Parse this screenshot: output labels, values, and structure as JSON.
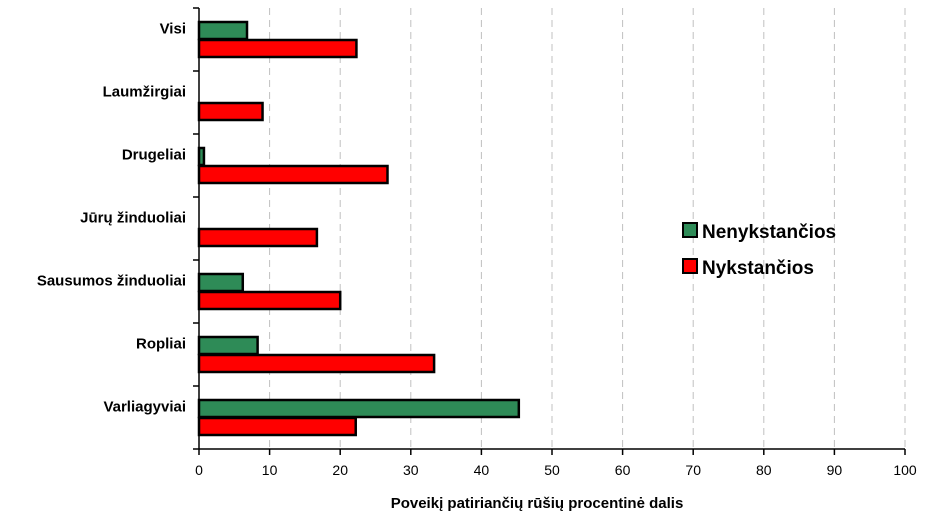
{
  "chart_data": {
    "type": "bar",
    "orientation": "horizontal",
    "categories": [
      "Visi",
      "Laumžirgiai",
      "Drugeliai",
      "Jūrų žinduoliai",
      "Sausumos žinduoliai",
      "Ropliai",
      "Varliagyviai"
    ],
    "series": [
      {
        "name": "Nenykstančios",
        "color": "#2e8b57",
        "values": [
          6.8,
          0,
          0.7,
          0,
          6.2,
          8.3,
          45.3
        ]
      },
      {
        "name": "Nykstančios",
        "color": "#ff0000",
        "values": [
          22.3,
          9.0,
          26.7,
          16.7,
          20.0,
          33.3,
          22.2
        ]
      }
    ],
    "xlim": [
      0,
      100
    ],
    "xticks": [
      0,
      10,
      20,
      30,
      40,
      50,
      60,
      70,
      80,
      90,
      100
    ],
    "xlabel": "Poveikį patiriančių rūšių procentinė dalis",
    "ylabel": "",
    "grid": "vertical dashed",
    "legend_position": "right"
  }
}
